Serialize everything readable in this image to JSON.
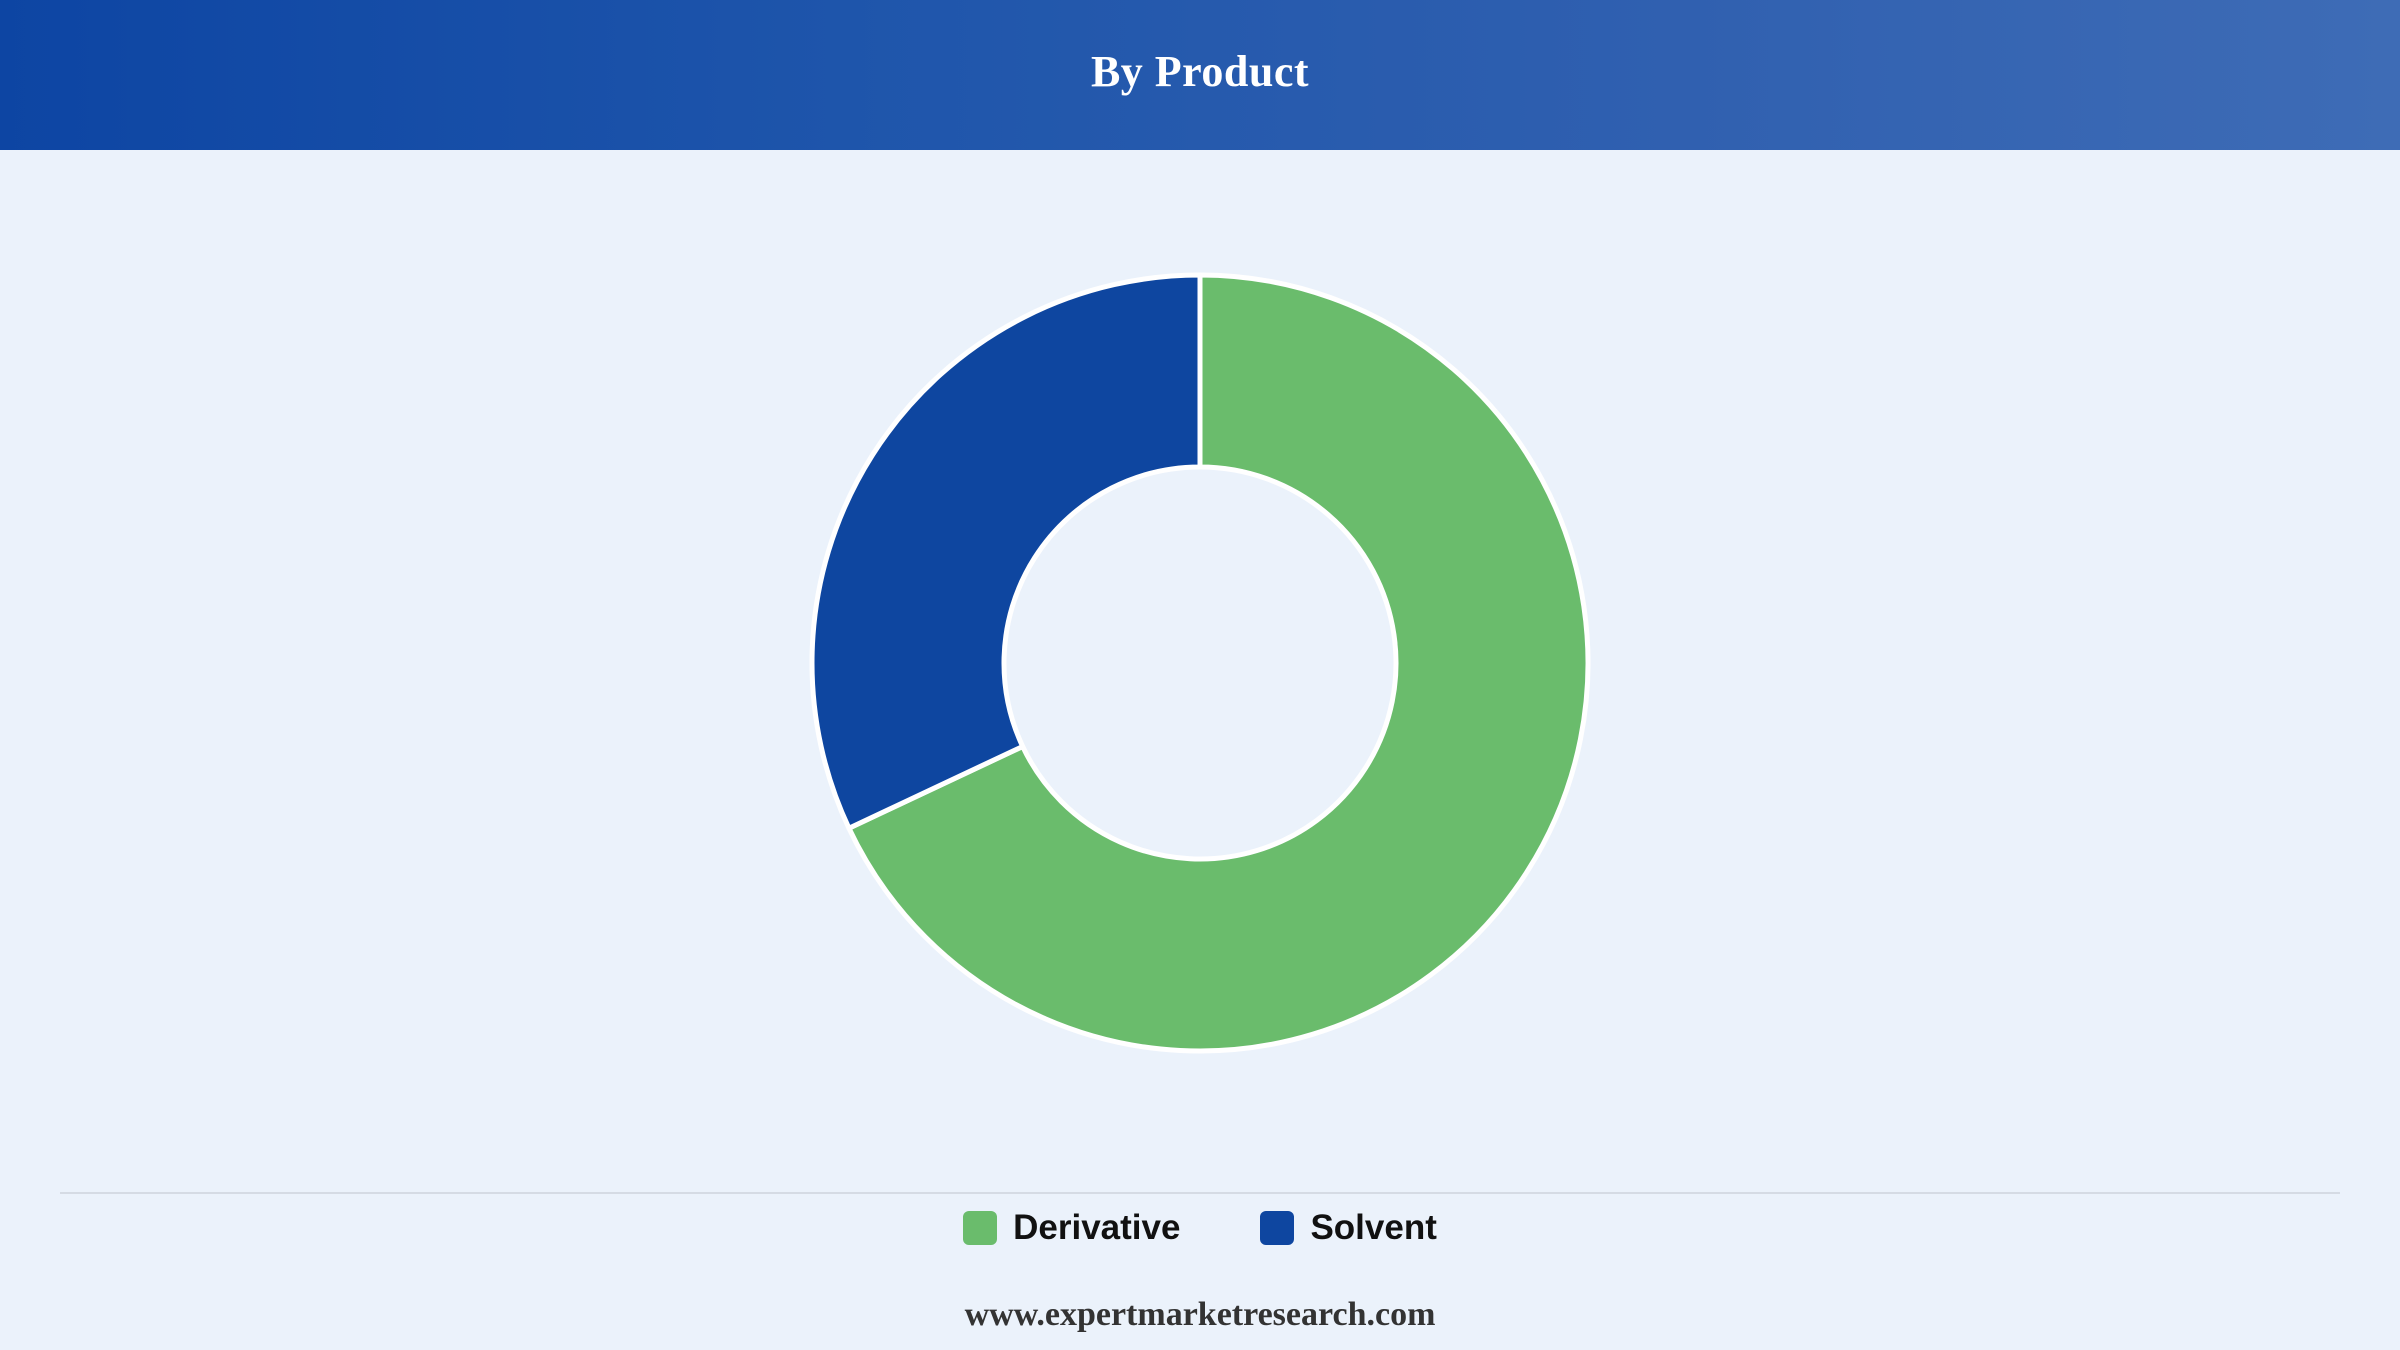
{
  "header": {
    "title": "By Product",
    "background": "#0d45a3"
  },
  "chart_data": {
    "type": "pie",
    "style": "donut",
    "title": "By Product",
    "series": [
      {
        "name": "Derivative",
        "value": 68,
        "color": "#6abc6c"
      },
      {
        "name": "Solvent",
        "value": 32,
        "color": "#0e46a0"
      }
    ],
    "legend_position": "bottom"
  },
  "footer": {
    "source": "www.expertmarketresearch.com"
  }
}
